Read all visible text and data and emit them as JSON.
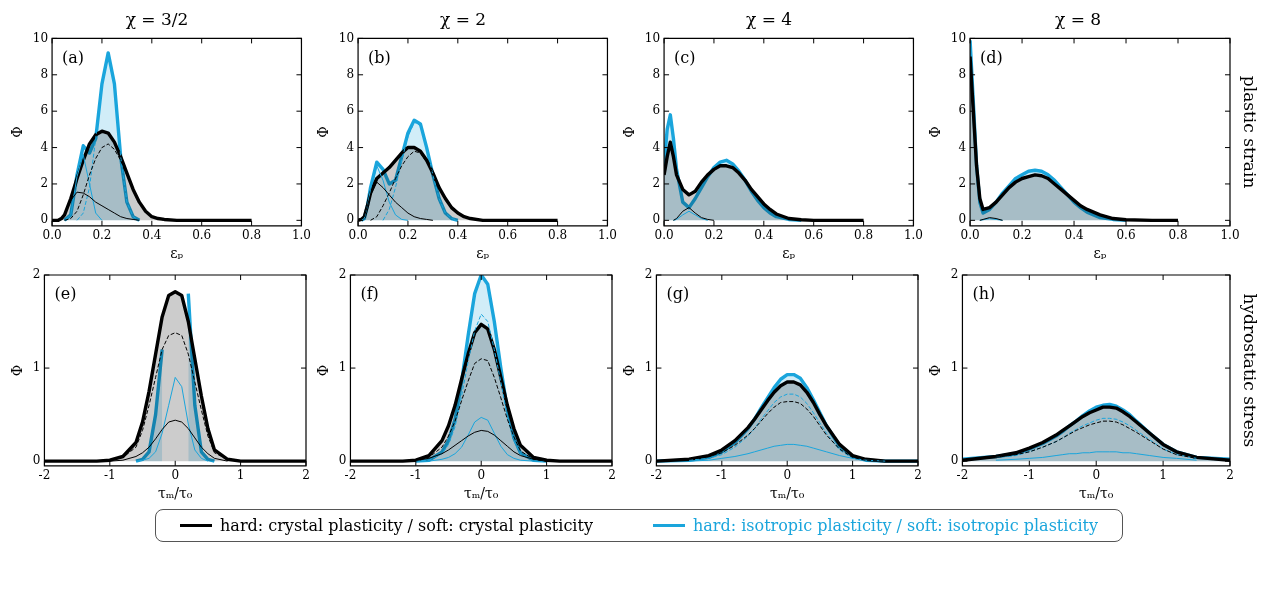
{
  "chart_data": [
    {
      "type": "line",
      "title": "χ = 3/2",
      "xlabel": "εₚ",
      "ylabel": "Φ",
      "annotations": [
        "(a)"
      ],
      "xlim": [
        0,
        1
      ],
      "ylim": [
        -0.3,
        10
      ],
      "xticks": [
        {
          "value": 0,
          "label": "0.0"
        },
        {
          "value": 0.2,
          "label": "0.2"
        },
        {
          "value": 0.4,
          "label": "0.4"
        },
        {
          "value": 0.6,
          "label": "0.6"
        },
        {
          "value": 0.8,
          "label": "0.8"
        },
        {
          "value": 1,
          "label": "1.0"
        }
      ],
      "yticks": [
        0,
        2,
        4,
        6,
        8,
        10
      ],
      "legend": "bottom",
      "x": [
        0,
        0.0125,
        0.025,
        0.0375,
        0.05,
        0.075,
        0.1,
        0.125,
        0.15,
        0.175,
        0.2,
        0.225,
        0.25,
        0.275,
        0.3,
        0.325,
        0.35,
        0.375,
        0.4,
        0.425,
        0.45,
        0.5,
        0.55,
        0.6,
        0.7,
        0.8
      ],
      "series": [
        {
          "type": "area",
          "name": "hard: crystal plasticity / soft: crystal plasticity",
          "color": "#000000",
          "values": [
            0,
            0,
            0,
            0.1,
            0.3,
            1.2,
            2.3,
            3.3,
            4.2,
            4.7,
            4.9,
            4.8,
            4.3,
            3.5,
            2.6,
            1.7,
            1.0,
            0.5,
            0.2,
            0.1,
            0.05,
            0,
            0,
            0,
            0,
            0
          ]
        },
        {
          "type": "line",
          "color": "#000000",
          "values": [
            null,
            null,
            0,
            0.1,
            0.3,
            1.1,
            1.55,
            1.5,
            1.3,
            1.0,
            0.8,
            0.6,
            0.4,
            0.2,
            0.1,
            0.05,
            0,
            null,
            null,
            null,
            null,
            null,
            null,
            null,
            null,
            null
          ]
        },
        {
          "type": "line",
          "line_style": "dashed",
          "color": "#000000",
          "values": [
            null,
            null,
            null,
            null,
            0,
            0.1,
            0.5,
            1.4,
            2.5,
            3.4,
            4.0,
            4.2,
            3.9,
            3.3,
            2.5,
            1.7,
            1.0,
            0.5,
            0.2,
            0.1,
            0,
            null,
            null,
            null,
            null,
            null
          ]
        },
        {
          "type": "area",
          "name": "hard: isotropic plasticity / soft: isotropic plasticity",
          "color": "#1aa5dc",
          "values": [
            null,
            null,
            null,
            null,
            0,
            0.3,
            2.5,
            4.1,
            3.7,
            4.5,
            7.5,
            9.2,
            7.5,
            3.5,
            1.0,
            0.2,
            0,
            null,
            null,
            null,
            null,
            null,
            null,
            null,
            null,
            null
          ]
        },
        {
          "type": "line",
          "color": "#1aa5dc",
          "values": [
            null,
            null,
            null,
            null,
            0,
            0.3,
            2.4,
            3.6,
            2.0,
            0.4,
            0,
            null,
            null,
            null,
            null,
            null,
            null,
            null,
            null,
            null,
            null,
            null,
            null,
            null,
            null,
            null
          ]
        },
        {
          "type": "line",
          "line_style": "dashed",
          "color": "#1aa5dc",
          "values": [
            null,
            null,
            null,
            null,
            null,
            null,
            0,
            0.4,
            1.8,
            4.5,
            7.4,
            9.0,
            7.4,
            3.5,
            1.0,
            0.2,
            0,
            null,
            null,
            null,
            null,
            null,
            null,
            null,
            null,
            null
          ]
        }
      ]
    },
    {
      "type": "line",
      "title": "χ = 2",
      "xlabel": "εₚ",
      "ylabel": "Φ",
      "annotations": [
        "(b)"
      ],
      "xlim": [
        0,
        1
      ],
      "ylim": [
        -0.3,
        10
      ],
      "xticks": [
        {
          "value": 0,
          "label": "0.0"
        },
        {
          "value": 0.2,
          "label": "0.2"
        },
        {
          "value": 0.4,
          "label": "0.4"
        },
        {
          "value": 0.6,
          "label": "0.6"
        },
        {
          "value": 0.8,
          "label": "0.8"
        },
        {
          "value": 1,
          "label": "1.0"
        }
      ],
      "yticks": [
        0,
        2,
        4,
        6,
        8,
        10
      ],
      "x": [
        0,
        0.0125,
        0.025,
        0.0375,
        0.05,
        0.075,
        0.1,
        0.125,
        0.15,
        0.175,
        0.2,
        0.225,
        0.25,
        0.275,
        0.3,
        0.325,
        0.35,
        0.375,
        0.4,
        0.425,
        0.45,
        0.5,
        0.55,
        0.6,
        0.7,
        0.8
      ],
      "series": [
        {
          "type": "area",
          "color": "#000000",
          "values": [
            0,
            0.05,
            0.2,
            0.8,
            1.5,
            2.3,
            2.6,
            2.9,
            3.3,
            3.7,
            4.0,
            4.0,
            3.8,
            3.3,
            2.6,
            1.8,
            1.2,
            0.7,
            0.4,
            0.2,
            0.1,
            0,
            0,
            0,
            0,
            0
          ]
        },
        {
          "type": "line",
          "color": "#000000",
          "values": [
            null,
            0.05,
            0.2,
            0.8,
            1.4,
            2.1,
            1.8,
            1.4,
            1.0,
            0.7,
            0.4,
            0.2,
            0.1,
            0.05,
            0,
            null,
            null,
            null,
            null,
            null,
            null,
            null,
            null,
            null,
            null,
            null
          ]
        },
        {
          "type": "line",
          "line_style": "dashed",
          "color": "#000000",
          "values": [
            null,
            null,
            null,
            null,
            0,
            0.2,
            0.8,
            1.5,
            2.3,
            3.0,
            3.5,
            3.8,
            3.7,
            3.2,
            2.6,
            1.8,
            1.2,
            0.7,
            0.4,
            0.2,
            0.1,
            0,
            null,
            null,
            null,
            null
          ]
        },
        {
          "type": "area",
          "color": "#1aa5dc",
          "values": [
            null,
            0,
            0.1,
            0.8,
            1.8,
            3.2,
            2.8,
            2.0,
            2.2,
            3.5,
            4.8,
            5.5,
            5.3,
            4.0,
            2.5,
            1.2,
            0.4,
            0.1,
            0,
            null,
            null,
            null,
            null,
            null,
            null,
            null
          ]
        },
        {
          "type": "line",
          "color": "#1aa5dc",
          "values": [
            null,
            0,
            0.1,
            0.8,
            1.7,
            3.0,
            2.2,
            1.0,
            0.3,
            0.05,
            0,
            null,
            null,
            null,
            null,
            null,
            null,
            null,
            null,
            null,
            null,
            null,
            null,
            null,
            null,
            null
          ]
        },
        {
          "type": "line",
          "line_style": "dashed",
          "color": "#1aa5dc",
          "values": [
            null,
            null,
            null,
            null,
            null,
            null,
            0,
            0.6,
            1.8,
            3.3,
            4.6,
            5.4,
            5.2,
            4.0,
            2.5,
            1.2,
            0.4,
            0.1,
            0,
            null,
            null,
            null,
            null,
            null,
            null,
            null
          ]
        }
      ]
    },
    {
      "type": "line",
      "title": "χ = 4",
      "xlabel": "εₚ",
      "ylabel": "Φ",
      "annotations": [
        "(c)"
      ],
      "xlim": [
        0,
        1
      ],
      "ylim": [
        -0.3,
        10
      ],
      "xticks": [
        {
          "value": 0,
          "label": "0.0"
        },
        {
          "value": 0.2,
          "label": "0.2"
        },
        {
          "value": 0.4,
          "label": "0.4"
        },
        {
          "value": 0.6,
          "label": "0.6"
        },
        {
          "value": 0.8,
          "label": "0.8"
        },
        {
          "value": 1,
          "label": "1.0"
        }
      ],
      "yticks": [
        0,
        2,
        4,
        6,
        8,
        10
      ],
      "x": [
        0,
        0.0125,
        0.025,
        0.0375,
        0.05,
        0.075,
        0.1,
        0.125,
        0.15,
        0.175,
        0.2,
        0.225,
        0.25,
        0.275,
        0.3,
        0.325,
        0.35,
        0.375,
        0.4,
        0.425,
        0.45,
        0.5,
        0.55,
        0.6,
        0.7,
        0.8
      ],
      "series": [
        {
          "type": "area",
          "color": "#000000",
          "values": [
            2.5,
            3.5,
            4.3,
            3.5,
            2.5,
            1.7,
            1.4,
            1.6,
            2.1,
            2.5,
            2.8,
            3.0,
            3.0,
            2.9,
            2.6,
            2.2,
            1.7,
            1.3,
            0.9,
            0.6,
            0.35,
            0.1,
            0.03,
            0,
            0,
            0
          ]
        },
        {
          "type": "line",
          "color": "#000000",
          "values": [
            null,
            null,
            null,
            0,
            0.1,
            0.5,
            0.7,
            0.4,
            0.15,
            0.05,
            0,
            null,
            null,
            null,
            null,
            null,
            null,
            null,
            null,
            null,
            null,
            null,
            null,
            null,
            null,
            null
          ]
        },
        {
          "type": "area",
          "color": "#1aa5dc",
          "values": [
            3.0,
            5.0,
            5.8,
            4.5,
            2.8,
            1.0,
            0.7,
            1.2,
            1.8,
            2.4,
            2.9,
            3.2,
            3.3,
            3.1,
            2.7,
            2.2,
            1.6,
            1.1,
            0.7,
            0.4,
            0.2,
            0.05,
            0,
            null,
            null,
            null
          ]
        },
        {
          "type": "line",
          "color": "#1aa5dc",
          "values": [
            null,
            null,
            null,
            0,
            0.05,
            0.3,
            0.5,
            0.3,
            0.1,
            0,
            null,
            null,
            null,
            null,
            null,
            null,
            null,
            null,
            null,
            null,
            null,
            null,
            null,
            null,
            null,
            null
          ]
        }
      ]
    },
    {
      "type": "line",
      "title": "χ = 8",
      "xlabel": "εₚ",
      "ylabel": "Φ",
      "annotations": [
        "(d)",
        "plastic strain"
      ],
      "xlim": [
        0,
        1
      ],
      "ylim": [
        -0.3,
        10
      ],
      "xticks": [
        {
          "value": 0,
          "label": "0.0"
        },
        {
          "value": 0.2,
          "label": "0.2"
        },
        {
          "value": 0.4,
          "label": "0.4"
        },
        {
          "value": 0.6,
          "label": "0.6"
        },
        {
          "value": 0.8,
          "label": "0.8"
        },
        {
          "value": 1,
          "label": "1.0"
        }
      ],
      "yticks": [
        0,
        2,
        4,
        6,
        8,
        10
      ],
      "x": [
        0,
        0.0125,
        0.025,
        0.0375,
        0.05,
        0.075,
        0.1,
        0.125,
        0.15,
        0.175,
        0.2,
        0.225,
        0.25,
        0.275,
        0.3,
        0.325,
        0.35,
        0.375,
        0.4,
        0.425,
        0.45,
        0.5,
        0.55,
        0.6,
        0.7,
        0.8
      ],
      "series": [
        {
          "type": "area",
          "color": "#000000",
          "values": [
            9.0,
            6.0,
            3.0,
            1.2,
            0.6,
            0.7,
            1.0,
            1.4,
            1.8,
            2.1,
            2.3,
            2.4,
            2.5,
            2.45,
            2.3,
            2.0,
            1.7,
            1.4,
            1.1,
            0.8,
            0.6,
            0.3,
            0.1,
            0.03,
            0,
            0
          ]
        },
        {
          "type": "line",
          "color": "#000000",
          "values": [
            null,
            null,
            null,
            0,
            0.05,
            0.15,
            0.1,
            0,
            null,
            null,
            null,
            null,
            null,
            null,
            null,
            null,
            null,
            null,
            null,
            null,
            null,
            null,
            null,
            null,
            null,
            null
          ]
        },
        {
          "type": "area",
          "color": "#1aa5dc",
          "values": [
            9.9,
            6.5,
            3.0,
            1.0,
            0.4,
            0.6,
            1.0,
            1.5,
            1.9,
            2.3,
            2.5,
            2.7,
            2.75,
            2.7,
            2.5,
            2.2,
            1.8,
            1.4,
            1.0,
            0.7,
            0.45,
            0.15,
            0.05,
            0,
            null,
            null
          ]
        },
        {
          "type": "line",
          "color": "#1aa5dc",
          "values": [
            null,
            null,
            null,
            0,
            0.03,
            0.1,
            0.05,
            0,
            null,
            null,
            null,
            null,
            null,
            null,
            null,
            null,
            null,
            null,
            null,
            null,
            null,
            null,
            null,
            null,
            null,
            null
          ]
        }
      ]
    },
    {
      "type": "line",
      "xlabel": "τₘ/τ₀",
      "ylabel": "Φ",
      "annotations": [
        "(e)"
      ],
      "xlim": [
        -2,
        2
      ],
      "ylim": [
        -0.05,
        2
      ],
      "xticks": [
        -2,
        -1,
        0,
        1,
        2
      ],
      "yticks": [
        0,
        1,
        2
      ],
      "x": [
        -2,
        -1.5,
        -1.2,
        -1,
        -0.8,
        -0.6,
        -0.5,
        -0.4,
        -0.3,
        -0.2,
        -0.1,
        0,
        0.1,
        0.2,
        0.3,
        0.4,
        0.5,
        0.6,
        0.8,
        1,
        1.2,
        1.5,
        2
      ],
      "series": [
        {
          "type": "area",
          "color": "#000000",
          "values": [
            0,
            0,
            0,
            0.01,
            0.05,
            0.2,
            0.42,
            0.75,
            1.15,
            1.55,
            1.78,
            1.82,
            1.78,
            1.5,
            1.1,
            0.7,
            0.35,
            0.12,
            0.02,
            0,
            0,
            0,
            0
          ]
        },
        {
          "type": "line",
          "color": "#000000",
          "values": [
            null,
            null,
            null,
            0,
            0.01,
            0.05,
            0.09,
            0.15,
            0.24,
            0.34,
            0.42,
            0.44,
            0.42,
            0.35,
            0.25,
            0.15,
            0.08,
            0.03,
            0,
            null,
            null,
            null,
            null
          ]
        },
        {
          "type": "line",
          "line_style": "dashed",
          "color": "#000000",
          "values": [
            null,
            null,
            0,
            0.01,
            0.04,
            0.15,
            0.33,
            0.6,
            0.9,
            1.2,
            1.35,
            1.38,
            1.35,
            1.15,
            0.85,
            0.55,
            0.27,
            0.09,
            0.02,
            0,
            null,
            null,
            null
          ]
        },
        {
          "type": "area",
          "color": "#1aa5dc",
          "values": [
            null,
            null,
            null,
            null,
            null,
            0,
            0.02,
            0.1,
            0.5,
            1.2,
            null,
            null,
            null,
            1.8,
            0.6,
            0.1,
            0.02,
            0,
            null,
            null,
            null,
            null,
            null
          ]
        },
        {
          "type": "line",
          "color": "#1aa5dc",
          "values": [
            null,
            null,
            null,
            null,
            null,
            0,
            0.01,
            0.03,
            0.1,
            0.3,
            0.6,
            0.9,
            0.8,
            0.4,
            0.12,
            0.03,
            0,
            null,
            null,
            null,
            null,
            null,
            null
          ]
        }
      ]
    },
    {
      "type": "line",
      "xlabel": "τₘ/τ₀",
      "ylabel": "Φ",
      "annotations": [
        "(f)"
      ],
      "xlim": [
        -2,
        2
      ],
      "ylim": [
        -0.05,
        2
      ],
      "xticks": [
        -2,
        -1,
        0,
        1,
        2
      ],
      "yticks": [
        0,
        1,
        2
      ],
      "x": [
        -2,
        -1.5,
        -1.2,
        -1,
        -0.8,
        -0.6,
        -0.5,
        -0.4,
        -0.3,
        -0.2,
        -0.1,
        0,
        0.1,
        0.2,
        0.3,
        0.4,
        0.5,
        0.6,
        0.8,
        1,
        1.2,
        1.5,
        2
      ],
      "series": [
        {
          "type": "area",
          "color": "#000000",
          "values": [
            0,
            0,
            0,
            0.01,
            0.06,
            0.22,
            0.38,
            0.6,
            0.88,
            1.15,
            1.38,
            1.47,
            1.42,
            1.2,
            0.9,
            0.6,
            0.35,
            0.17,
            0.04,
            0.01,
            0,
            0,
            0
          ]
        },
        {
          "type": "line",
          "color": "#000000",
          "values": [
            null,
            null,
            0,
            0.01,
            0.03,
            0.08,
            0.12,
            0.17,
            0.22,
            0.27,
            0.31,
            0.33,
            0.32,
            0.28,
            0.22,
            0.16,
            0.1,
            0.06,
            0.02,
            0,
            null,
            null,
            null
          ]
        },
        {
          "type": "line",
          "line_style": "dashed",
          "color": "#000000",
          "values": [
            null,
            null,
            0,
            0.01,
            0.04,
            0.15,
            0.27,
            0.43,
            0.65,
            0.86,
            1.05,
            1.1,
            1.08,
            0.9,
            0.68,
            0.45,
            0.26,
            0.11,
            0.02,
            0,
            null,
            null,
            null
          ]
        },
        {
          "type": "area",
          "color": "#1aa5dc",
          "values": [
            null,
            null,
            null,
            0,
            0.01,
            0.1,
            0.22,
            0.45,
            0.85,
            1.35,
            1.8,
            2.0,
            1.9,
            1.5,
            1.0,
            0.55,
            0.25,
            0.09,
            0.01,
            0,
            null,
            null,
            null
          ]
        },
        {
          "type": "line",
          "color": "#1aa5dc",
          "values": [
            null,
            null,
            null,
            null,
            0,
            0.02,
            0.04,
            0.08,
            0.15,
            0.28,
            0.42,
            0.47,
            0.44,
            0.3,
            0.16,
            0.07,
            0.03,
            0.01,
            0,
            null,
            null,
            null,
            null
          ]
        },
        {
          "type": "line",
          "line_style": "dashed",
          "color": "#1aa5dc",
          "values": [
            null,
            null,
            null,
            0,
            0.01,
            0.08,
            0.18,
            0.37,
            0.7,
            1.07,
            1.4,
            1.58,
            1.5,
            1.2,
            0.85,
            0.48,
            0.22,
            0.08,
            0.01,
            0,
            null,
            null,
            null
          ]
        }
      ]
    },
    {
      "type": "line",
      "xlabel": "τₘ/τ₀",
      "ylabel": "Φ",
      "annotations": [
        "(g)"
      ],
      "xlim": [
        -2,
        2
      ],
      "ylim": [
        -0.05,
        2
      ],
      "xticks": [
        -2,
        -1,
        0,
        1,
        2
      ],
      "yticks": [
        0,
        1,
        2
      ],
      "x": [
        -2,
        -1.5,
        -1.2,
        -1,
        -0.8,
        -0.6,
        -0.5,
        -0.4,
        -0.3,
        -0.2,
        -0.1,
        0,
        0.1,
        0.2,
        0.3,
        0.4,
        0.5,
        0.6,
        0.8,
        1,
        1.2,
        1.5,
        2
      ],
      "series": [
        {
          "type": "area",
          "color": "#000000",
          "values": [
            0,
            0.02,
            0.06,
            0.12,
            0.22,
            0.36,
            0.45,
            0.55,
            0.65,
            0.74,
            0.81,
            0.85,
            0.85,
            0.82,
            0.74,
            0.63,
            0.5,
            0.38,
            0.18,
            0.06,
            0.02,
            0,
            0
          ]
        },
        {
          "type": "line",
          "line_style": "dashed",
          "color": "#000000",
          "values": [
            null,
            0.02,
            0.05,
            0.09,
            0.17,
            0.28,
            0.35,
            0.43,
            0.51,
            0.58,
            0.63,
            0.64,
            0.64,
            0.62,
            0.56,
            0.48,
            0.38,
            0.28,
            0.13,
            0.04,
            0.01,
            0,
            null
          ]
        },
        {
          "type": "area",
          "color": "#1aa5dc",
          "values": [
            0,
            0.01,
            0.04,
            0.1,
            0.2,
            0.35,
            0.45,
            0.57,
            0.68,
            0.79,
            0.88,
            0.93,
            0.93,
            0.89,
            0.79,
            0.66,
            0.52,
            0.38,
            0.16,
            0.05,
            0.01,
            0,
            0
          ]
        },
        {
          "type": "line",
          "color": "#1aa5dc",
          "values": [
            null,
            0,
            0.01,
            0.03,
            0.05,
            0.08,
            0.1,
            0.12,
            0.14,
            0.16,
            0.17,
            0.18,
            0.18,
            0.17,
            0.16,
            0.14,
            0.12,
            0.1,
            0.06,
            0.03,
            0.01,
            0,
            null
          ]
        },
        {
          "type": "line",
          "line_style": "dashed",
          "color": "#1aa5dc",
          "values": [
            null,
            0.01,
            0.03,
            0.07,
            0.15,
            0.27,
            0.35,
            0.45,
            0.54,
            0.63,
            0.69,
            0.72,
            0.72,
            0.69,
            0.62,
            0.52,
            0.41,
            0.3,
            0.12,
            0.03,
            0.01,
            null,
            null
          ]
        }
      ]
    },
    {
      "type": "line",
      "xlabel": "τₘ/τ₀",
      "ylabel": "Φ",
      "annotations": [
        "(h)",
        "hydrostatic stress"
      ],
      "xlim": [
        -2,
        2
      ],
      "ylim": [
        -0.05,
        2
      ],
      "xticks": [
        -2,
        -1,
        0,
        1,
        2
      ],
      "yticks": [
        0,
        1,
        2
      ],
      "x": [
        -2,
        -1.5,
        -1.2,
        -1,
        -0.8,
        -0.6,
        -0.5,
        -0.4,
        -0.3,
        -0.2,
        -0.1,
        0,
        0.1,
        0.2,
        0.3,
        0.4,
        0.5,
        0.6,
        0.8,
        1,
        1.2,
        1.5,
        2
      ],
      "series": [
        {
          "type": "area",
          "color": "#000000",
          "values": [
            0.01,
            0.05,
            0.09,
            0.14,
            0.2,
            0.28,
            0.33,
            0.38,
            0.43,
            0.48,
            0.52,
            0.55,
            0.58,
            0.58,
            0.57,
            0.53,
            0.48,
            0.42,
            0.3,
            0.18,
            0.1,
            0.04,
            0.01
          ]
        },
        {
          "type": "line",
          "line_style": "dashed",
          "color": "#000000",
          "values": [
            null,
            0.04,
            0.07,
            0.1,
            0.15,
            0.21,
            0.25,
            0.29,
            0.33,
            0.36,
            0.39,
            0.41,
            0.43,
            0.43,
            0.42,
            0.39,
            0.35,
            0.31,
            0.22,
            0.13,
            0.07,
            0.03,
            null
          ]
        },
        {
          "type": "area",
          "color": "#1aa5dc",
          "values": [
            0.02,
            0.05,
            0.08,
            0.13,
            0.19,
            0.27,
            0.32,
            0.38,
            0.43,
            0.49,
            0.54,
            0.58,
            0.6,
            0.61,
            0.59,
            0.55,
            0.5,
            0.43,
            0.3,
            0.18,
            0.1,
            0.04,
            0.02
          ]
        },
        {
          "type": "line",
          "color": "#1aa5dc",
          "values": [
            null,
            0.01,
            0.02,
            0.03,
            0.04,
            0.06,
            0.07,
            0.08,
            0.08,
            0.09,
            0.09,
            0.1,
            0.1,
            0.1,
            0.1,
            0.09,
            0.09,
            0.08,
            0.06,
            0.04,
            0.03,
            0.01,
            null
          ]
        },
        {
          "type": "line",
          "line_style": "dashed",
          "color": "#1aa5dc",
          "values": [
            null,
            0.04,
            0.06,
            0.1,
            0.15,
            0.21,
            0.25,
            0.3,
            0.34,
            0.38,
            0.41,
            0.44,
            0.46,
            0.46,
            0.45,
            0.42,
            0.38,
            0.33,
            0.23,
            0.13,
            0.07,
            0.03,
            null
          ]
        }
      ]
    }
  ]
}
